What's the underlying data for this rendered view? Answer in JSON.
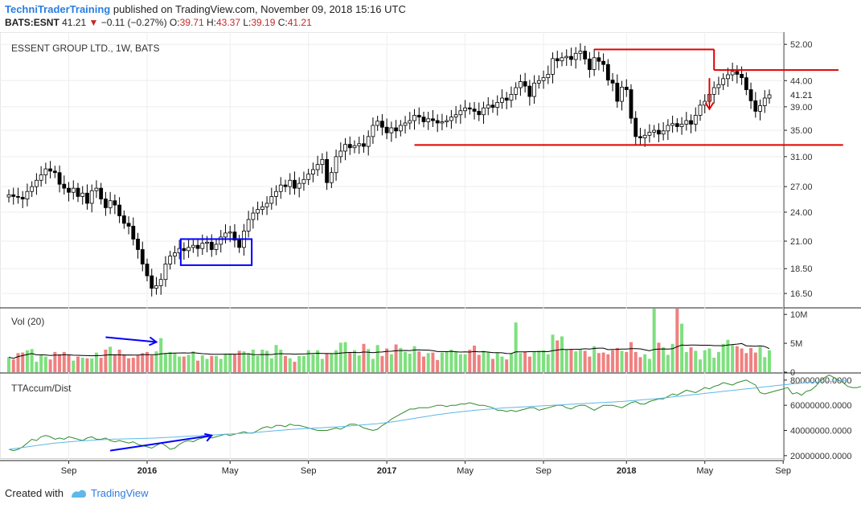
{
  "header": {
    "author": "TechniTraderTraining",
    "published": "published on TradingView.com, November 09, 2018 15:16 UTC",
    "symbol": "BATS:ESNT",
    "last": "41.21",
    "change": "−0.11 (−0.27%)",
    "o_label": "O:",
    "o_value": "39.71",
    "h_label": "H:",
    "h_value": "43.37",
    "l_label": "L:",
    "l_value": "39.19",
    "c_label": "C:",
    "c_value": "41.21"
  },
  "footer": {
    "created_with": "Created with",
    "brand": "TradingView"
  },
  "colors": {
    "up": "#ffffff",
    "down": "#000000",
    "vol_up": "#7ee07e",
    "vol_down": "#f08080",
    "resistance": "#e00000",
    "box": "#0000ff",
    "arrow_blue": "#0000ff",
    "accum": "#2e8b2e",
    "accum_ma": "#5fb8e8",
    "price_tag": "#222222"
  },
  "chart_data": [
    {
      "type": "candlestick",
      "title": "ESSENT GROUP LTD., 1W, BATS",
      "current_price_label": "41.21",
      "y_ticks": [
        "52.00",
        "44.00",
        "41.21",
        "39.00",
        "35.00",
        "31.00",
        "27.00",
        "24.00",
        "21.00",
        "18.50",
        "16.50"
      ],
      "y_tick_values": [
        52,
        44,
        39,
        35,
        31,
        27,
        24,
        21,
        18.5,
        16.5
      ],
      "log_scale": true,
      "ylim": [
        15.5,
        54
      ],
      "x_ticks": [
        {
          "label": "Sep",
          "week": 13,
          "bold": false
        },
        {
          "label": "2016",
          "week": 30,
          "bold": true
        },
        {
          "label": "May",
          "week": 48,
          "bold": false
        },
        {
          "label": "Sep",
          "week": 65,
          "bold": false
        },
        {
          "label": "2017",
          "week": 82,
          "bold": true
        },
        {
          "label": "May",
          "week": 99,
          "bold": false
        },
        {
          "label": "Sep",
          "week": 116,
          "bold": false
        },
        {
          "label": "2018",
          "week": 134,
          "bold": true
        },
        {
          "label": "May",
          "week": 151,
          "bold": false
        },
        {
          "label": "Sep",
          "week": 168,
          "bold": false
        }
      ],
      "closes": [
        26.0,
        25.8,
        25.7,
        25.5,
        26.4,
        27.0,
        27.8,
        28.5,
        29.3,
        29.0,
        28.8,
        27.3,
        26.8,
        26.3,
        26.8,
        25.8,
        26.2,
        25.0,
        26.5,
        26.8,
        25.5,
        24.5,
        25.3,
        24.8,
        23.6,
        22.8,
        22.5,
        21.2,
        20.2,
        18.9,
        17.9,
        16.9,
        17.1,
        17.6,
        18.9,
        19.6,
        19.9,
        20.3,
        20.1,
        20.4,
        20.6,
        20.3,
        20.8,
        20.9,
        20.2,
        20.7,
        21.4,
        21.8,
        21.9,
        21.1,
        20.4,
        22.0,
        23.2,
        23.9,
        24.3,
        24.6,
        25.0,
        25.8,
        26.4,
        27.2,
        27.0,
        27.8,
        26.8,
        27.4,
        27.9,
        28.6,
        29.2,
        29.9,
        30.6,
        27.5,
        28.8,
        31.0,
        31.8,
        32.8,
        32.3,
        32.6,
        32.9,
        32.5,
        34.0,
        35.8,
        36.5,
        35.5,
        34.6,
        35.4,
        34.9,
        35.8,
        36.2,
        36.6,
        37.5,
        37.2,
        36.4,
        36.9,
        36.6,
        36.2,
        36.4,
        36.6,
        37.2,
        37.6,
        38.3,
        38.8,
        38.6,
        38.2,
        37.6,
        38.8,
        39.3,
        38.9,
        39.8,
        40.6,
        40.2,
        41.3,
        42.6,
        43.8,
        42.9,
        40.9,
        43.5,
        44.0,
        44.6,
        45.3,
        48.7,
        48.2,
        48.9,
        49.2,
        48.5,
        49.9,
        50.4,
        48.6,
        46.3,
        48.9,
        48.1,
        47.4,
        44.1,
        43.5,
        40.0,
        42.7,
        42.2,
        37.0,
        34.0,
        33.8,
        34.2,
        34.7,
        35.0,
        34.4,
        34.9,
        35.8,
        36.1,
        35.6,
        36.0,
        36.6,
        36.0,
        37.5,
        39.3,
        40.0,
        41.3,
        42.6,
        43.2,
        44.4,
        45.2,
        45.9,
        45.3,
        44.6,
        42.2,
        40.1,
        38.2,
        39.2,
        40.6,
        41.21
      ],
      "resistance_lines": [
        {
          "from_week": 127,
          "to_week": 153,
          "price": 50.8
        },
        {
          "from_week": 153,
          "to_week": 180,
          "price": 46.2
        },
        {
          "from_week": 88,
          "to_week": 181,
          "price": 32.7
        }
      ],
      "annotations": [
        {
          "type": "box",
          "from_week": 38,
          "to_week": 52,
          "top": 21.2,
          "bottom": 18.8
        },
        {
          "type": "down-arrow",
          "week": 152,
          "from_price": 44.5,
          "to_price": 38.6
        }
      ]
    },
    {
      "type": "bar",
      "title": "Vol (20)",
      "y_ticks": [
        "10M",
        "5M",
        "0"
      ],
      "y_tick_values": [
        10000000,
        5000000,
        0
      ],
      "ylim": [
        0,
        11000000
      ],
      "volumes_millions": [
        2.6,
        2.2,
        3.3,
        3.4,
        3.8,
        4.0,
        1.8,
        3.0,
        2.7,
        2.2,
        3.5,
        3.1,
        3.5,
        3.0,
        2.0,
        2.7,
        2.5,
        2.4,
        2.4,
        3.4,
        2.5,
        3.9,
        4.4,
        3.1,
        3.9,
        3.1,
        2.4,
        2.5,
        2.9,
        3.3,
        3.5,
        2.9,
        3.6,
        5.9,
        3.3,
        3.5,
        3.3,
        2.7,
        2.7,
        3.0,
        3.6,
        2.0,
        2.9,
        2.3,
        2.8,
        2.8,
        2.3,
        3.2,
        3.1,
        3.1,
        3.7,
        3.6,
        3.3,
        3.9,
        2.8,
        3.9,
        3.7,
        2.4,
        4.7,
        3.9,
        2.8,
        2.4,
        1.8,
        2.8,
        2.8,
        3.8,
        3.1,
        3.8,
        2.3,
        3.2,
        3.2,
        3.8,
        5.1,
        5.2,
        3.5,
        3.8,
        2.9,
        4.9,
        4.0,
        2.3,
        4.7,
        2.8,
        4.1,
        3.1,
        4.8,
        4.2,
        3.5,
        3.2,
        4.5,
        3.6,
        2.7,
        3.3,
        3.4,
        2.1,
        3.4,
        3.5,
        3.9,
        3.5,
        3.1,
        3.1,
        3.9,
        4.6,
        3.0,
        3.7,
        3.4,
        2.3,
        3.4,
        2.7,
        2.2,
        3.2,
        8.6,
        3.3,
        3.5,
        2.7,
        3.6,
        3.7,
        3.8,
        3.1,
        6.5,
        5.5,
        6.2,
        3.9,
        3.9,
        3.6,
        3.9,
        3.7,
        2.7,
        4.5,
        3.3,
        3.4,
        3.1,
        3.8,
        4.2,
        3.7,
        3.5,
        5.2,
        3.5,
        2.6,
        3.1,
        2.3,
        11.0,
        5.1,
        4.3,
        3.0,
        4.9,
        11.0,
        8.4,
        3.5,
        4.3,
        3.7,
        2.2,
        3.8,
        4.1,
        2.5,
        3.5,
        4.9,
        5.6,
        4.7,
        4.5,
        4.1,
        3.3,
        4.2,
        3.4,
        4.4,
        2.6,
        3.8,
        3.3,
        3.9,
        3.4,
        3.8,
        3.6,
        2.9,
        2.9,
        1.9,
        2.4,
        2.6
      ],
      "ma20_millions_start": 2.7,
      "ma20_millions_end": 3.3
    },
    {
      "type": "line",
      "title": "TTAccum/Dist",
      "y_ticks": [
        "80000000.0000",
        "60000000.0000",
        "40000000.0000",
        "20000000.0000"
      ],
      "y_tick_values": [
        80000000,
        60000000,
        40000000,
        20000000
      ],
      "ylim": [
        18000000,
        85000000
      ],
      "series": [
        {
          "values_millions": [
            25,
            24,
            25,
            27,
            30,
            33,
            32,
            35,
            36,
            35,
            33,
            34,
            33,
            35,
            34,
            33,
            32,
            34,
            35,
            33,
            33,
            34,
            32,
            31,
            32,
            31,
            30,
            31,
            29,
            28,
            27,
            26,
            28,
            30,
            28,
            25,
            26,
            29,
            31,
            32,
            31,
            33,
            34,
            35,
            34,
            35,
            36,
            37,
            36,
            37,
            38,
            39,
            38,
            38,
            40,
            42,
            43,
            42,
            44,
            44,
            43,
            45,
            44,
            44,
            43,
            42,
            41,
            40,
            40,
            40,
            41,
            42,
            41,
            43,
            45,
            45,
            44,
            42,
            41,
            40,
            41,
            44,
            46,
            49,
            51,
            53,
            55,
            57,
            57,
            58,
            58,
            58,
            59,
            60,
            60,
            59,
            60,
            60,
            61,
            61,
            62,
            61,
            60,
            60,
            59,
            58,
            56,
            56,
            55,
            56,
            55,
            56,
            57,
            58,
            58,
            56,
            57,
            58,
            59,
            60,
            60,
            58,
            57,
            59,
            60,
            60,
            58,
            56,
            58,
            60,
            60,
            60,
            59,
            58,
            60,
            62,
            63,
            61,
            61,
            63,
            64,
            65,
            65,
            67,
            69,
            68,
            70,
            72,
            71,
            70,
            72,
            74,
            73,
            75,
            76,
            78,
            77,
            76,
            78,
            79,
            80,
            78,
            76,
            70,
            69,
            70,
            71,
            72,
            73,
            74,
            69,
            70,
            68,
            71,
            72,
            75,
            79,
            82,
            84,
            82,
            80,
            78,
            75,
            74,
            74,
            75
          ]
        },
        {
          "values_millions": [
            25,
            25.5,
            26,
            26.5,
            27,
            27.5,
            28,
            28.5,
            29,
            29.5,
            30,
            30.3,
            30.6,
            30.9,
            31.2,
            31.5,
            31.8,
            32,
            32.2,
            32.4,
            32.6,
            32.8,
            33,
            33.1,
            33.2,
            33.3,
            33.4,
            33.5,
            33.6,
            33.7,
            33.8,
            33.9,
            34,
            34.2,
            34.4,
            34.6,
            34.8,
            35,
            35.2,
            35.4,
            35.6,
            35.8,
            36,
            36.2,
            36.4,
            36.6,
            36.8,
            37,
            37.2,
            37.4,
            37.6,
            37.8,
            38,
            38.3,
            38.6,
            38.9,
            39.2,
            39.5,
            39.8,
            40.1,
            40.4,
            40.7,
            41,
            41.2,
            41.4,
            41.6,
            41.8,
            42,
            42.2,
            42.4,
            42.6,
            42.8,
            43,
            43.3,
            43.6,
            43.9,
            44.2,
            44.5,
            44.8,
            45.1,
            45.4,
            45.8,
            46.2,
            46.7,
            47.2,
            47.8,
            48.4,
            49,
            49.6,
            50.2,
            50.8,
            51.4,
            52,
            52.5,
            53,
            53.5,
            54,
            54.4,
            54.8,
            55.2,
            55.6,
            56,
            56.3,
            56.6,
            56.9,
            57.2,
            57.5,
            57.8,
            58,
            58.2,
            58.4,
            58.6,
            58.8,
            59,
            59.2,
            59.4,
            59.6,
            59.8,
            60,
            60.2,
            60.4,
            60.6,
            60.8,
            61,
            61.2,
            61.4,
            61.6,
            61.8,
            62,
            62.2,
            62.4,
            62.6,
            62.8,
            63,
            63.3,
            63.6,
            63.9,
            64.2,
            64.5,
            64.8,
            65.1,
            65.4,
            65.8,
            66.2,
            66.6,
            67,
            67.4,
            67.8,
            68.2,
            68.6,
            69,
            69.4,
            69.8,
            70.2,
            70.6,
            71,
            71.4,
            71.8,
            72.2,
            72.6,
            73,
            73.4,
            73.8,
            74.2,
            74.6,
            75,
            75.4,
            75.8,
            76.2,
            76.6,
            77,
            77.3,
            77.6,
            77.9,
            78.2,
            78.4,
            78.6,
            78.8,
            79,
            79.1,
            79.2,
            79.3,
            79.4
          ]
        }
      ],
      "annotations": [
        {
          "type": "arrow",
          "from_week": 22,
          "from_value": 24000000,
          "to_week": 44,
          "to_value": 36000000
        }
      ]
    }
  ],
  "vol_annotation": {
    "type": "arrow",
    "from_week": 21,
    "to_week": 32,
    "value_millions": 5.5
  }
}
